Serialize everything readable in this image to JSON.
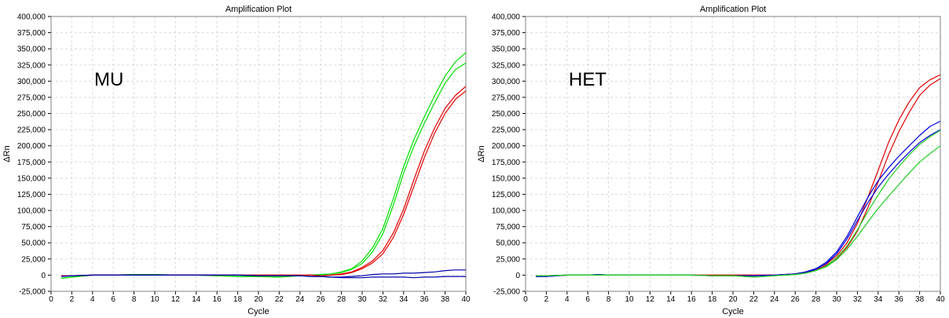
{
  "chart_data": [
    {
      "type": "line",
      "title": "Amplification Plot",
      "annotation": "MU",
      "xlabel": "Cycle",
      "ylabel": "ΔRn",
      "xlim": [
        0,
        40
      ],
      "ylim": [
        -25000,
        400000
      ],
      "xticks": [
        "0",
        "2",
        "4",
        "6",
        "8",
        "10",
        "12",
        "14",
        "16",
        "18",
        "20",
        "22",
        "24",
        "26",
        "28",
        "30",
        "32",
        "34",
        "36",
        "38",
        "40"
      ],
      "yticks": [
        "-25,000",
        "0",
        "25,000",
        "50,000",
        "75,000",
        "100,000",
        "125,000",
        "150,000",
        "175,000",
        "200,000",
        "225,000",
        "250,000",
        "275,000",
        "300,000",
        "325,000",
        "350,000",
        "375,000",
        "400,000"
      ],
      "grid": true,
      "x": [
        1,
        2,
        4,
        6,
        8,
        10,
        12,
        14,
        16,
        18,
        20,
        22,
        24,
        25,
        26,
        27,
        28,
        29,
        30,
        31,
        32,
        33,
        34,
        35,
        36,
        37,
        38,
        39,
        40
      ],
      "series": [
        {
          "color": "#00dd00",
          "values": [
            -5000,
            -3000,
            0,
            0,
            1000,
            1000,
            0,
            0,
            -1000,
            -2000,
            -2000,
            -3000,
            -1000,
            0,
            1000,
            2000,
            5000,
            10000,
            22000,
            42000,
            72000,
            118000,
            168000,
            210000,
            245000,
            278000,
            308000,
            330000,
            344000
          ]
        },
        {
          "color": "#00dd00",
          "values": [
            -5000,
            -3000,
            0,
            0,
            1000,
            1000,
            0,
            0,
            -1000,
            -2000,
            -2000,
            -3000,
            -1000,
            0,
            1000,
            2000,
            4000,
            9000,
            18000,
            36000,
            64000,
            108000,
            158000,
            200000,
            235000,
            267000,
            297000,
            318000,
            328000
          ]
        },
        {
          "color": "#e00000",
          "values": [
            -1000,
            -1000,
            0,
            0,
            0,
            0,
            0,
            0,
            0,
            0,
            0,
            0,
            0,
            0,
            -1000,
            0,
            2000,
            5000,
            12000,
            22000,
            38000,
            65000,
            102000,
            148000,
            192000,
            228000,
            258000,
            278000,
            292000
          ]
        },
        {
          "color": "#e00000",
          "values": [
            -1000,
            -1000,
            0,
            0,
            0,
            0,
            0,
            0,
            0,
            0,
            0,
            0,
            0,
            0,
            -1000,
            0,
            1000,
            4000,
            10000,
            19000,
            33000,
            58000,
            94000,
            138000,
            182000,
            220000,
            250000,
            272000,
            285000
          ]
        },
        {
          "color": "#0000aa",
          "values": [
            -2000,
            -1000,
            0,
            0,
            0,
            0,
            0,
            0,
            0,
            0,
            -1000,
            -1000,
            -1000,
            -2000,
            -2000,
            -3000,
            -3000,
            -2000,
            -1000,
            1000,
            2000,
            2000,
            3000,
            3000,
            4000,
            5000,
            7000,
            8000,
            8000
          ]
        },
        {
          "color": "#0000aa",
          "values": [
            -2000,
            -1000,
            0,
            0,
            0,
            0,
            0,
            0,
            0,
            0,
            -1000,
            -1000,
            -1000,
            -2000,
            -2000,
            -3000,
            -4000,
            -4000,
            -4000,
            -3000,
            -3000,
            -3000,
            -3000,
            -4000,
            -3000,
            -3000,
            -2000,
            -2000,
            -2000
          ]
        }
      ]
    },
    {
      "type": "line",
      "title": "Amplification Plot",
      "annotation": "HET",
      "xlabel": "Cycle",
      "ylabel": "ΔRn",
      "xlim": [
        0,
        40
      ],
      "ylim": [
        -25000,
        400000
      ],
      "xticks": [
        "0",
        "2",
        "4",
        "6",
        "8",
        "10",
        "12",
        "14",
        "16",
        "18",
        "20",
        "22",
        "24",
        "26",
        "28",
        "30",
        "32",
        "34",
        "36",
        "38",
        "40"
      ],
      "yticks": [
        "-25,000",
        "0",
        "25,000",
        "50,000",
        "75,000",
        "100,000",
        "125,000",
        "150,000",
        "175,000",
        "200,000",
        "225,000",
        "250,000",
        "275,000",
        "300,000",
        "325,000",
        "350,000",
        "375,000",
        "400,000"
      ],
      "grid": true,
      "x": [
        1,
        2,
        4,
        6,
        7,
        8,
        10,
        12,
        14,
        16,
        18,
        20,
        22,
        24,
        25,
        26,
        27,
        28,
        29,
        30,
        31,
        32,
        33,
        34,
        35,
        36,
        37,
        38,
        39,
        40
      ],
      "series": [
        {
          "color": "#e00000",
          "values": [
            -1000,
            -1000,
            0,
            0,
            0,
            0,
            0,
            0,
            0,
            0,
            0,
            0,
            0,
            0,
            1000,
            2000,
            5000,
            10000,
            17000,
            30000,
            50000,
            80000,
            120000,
            162000,
            205000,
            240000,
            268000,
            290000,
            302000,
            310000
          ]
        },
        {
          "color": "#e00000",
          "values": [
            -1000,
            -1000,
            0,
            0,
            0,
            0,
            0,
            0,
            0,
            0,
            0,
            0,
            0,
            0,
            1000,
            2000,
            4000,
            8000,
            15000,
            26000,
            43000,
            68000,
            104000,
            144000,
            186000,
            222000,
            252000,
            278000,
            294000,
            304000
          ]
        },
        {
          "color": "#0000dd",
          "values": [
            -2000,
            -2000,
            0,
            0,
            1000,
            0,
            0,
            0,
            0,
            0,
            -1000,
            -1000,
            -1000,
            0,
            1000,
            2000,
            5000,
            10000,
            20000,
            36000,
            60000,
            90000,
            120000,
            146000,
            166000,
            184000,
            200000,
            216000,
            230000,
            238000
          ]
        },
        {
          "color": "#0000dd",
          "values": [
            -2000,
            -2000,
            0,
            0,
            1000,
            0,
            0,
            0,
            0,
            0,
            -1000,
            -1000,
            -1000,
            0,
            1000,
            2000,
            4000,
            9000,
            18000,
            33000,
            56000,
            84000,
            112000,
            136000,
            156000,
            174000,
            190000,
            205000,
            216000,
            225000
          ]
        },
        {
          "color": "#22cc22",
          "values": [
            -1000,
            -1000,
            0,
            0,
            0,
            0,
            0,
            0,
            0,
            0,
            -1000,
            -1000,
            -3000,
            -1000,
            0,
            1000,
            3000,
            7000,
            14000,
            27000,
            45000,
            70000,
            98000,
            124000,
            148000,
            168000,
            186000,
            202000,
            214000,
            224000
          ]
        },
        {
          "color": "#22cc22",
          "values": [
            -1000,
            -1000,
            0,
            0,
            0,
            0,
            0,
            0,
            0,
            0,
            -1000,
            -1000,
            -3000,
            -1000,
            0,
            1000,
            3000,
            7000,
            13000,
            24000,
            40000,
            60000,
            82000,
            103000,
            122000,
            140000,
            158000,
            175000,
            188000,
            200000
          ]
        }
      ]
    }
  ]
}
